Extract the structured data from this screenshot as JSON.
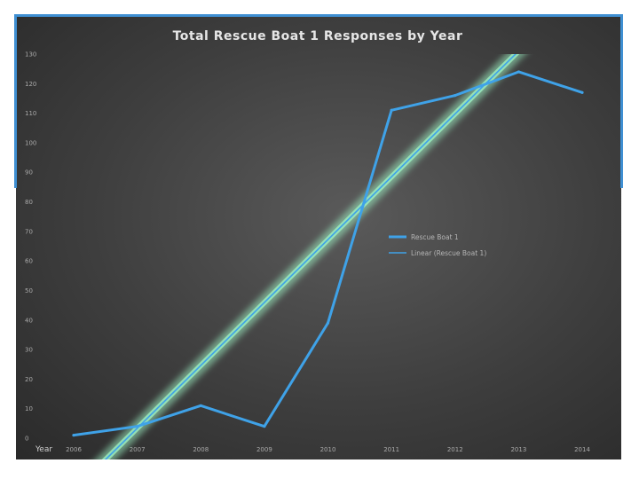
{
  "chart_data": {
    "type": "line",
    "title": "Total Rescue Boat 1 Responses by Year",
    "xlabel": "Year",
    "ylabel": "",
    "categories": [
      "2006",
      "2007",
      "2008",
      "2009",
      "2010",
      "2011",
      "2012",
      "2013",
      "2014"
    ],
    "y_ticks": [
      "0",
      "10",
      "20",
      "30",
      "40",
      "50",
      "60",
      "70",
      "80",
      "90",
      "100",
      "110",
      "120",
      "130"
    ],
    "ylim": [
      0,
      130
    ],
    "grid": false,
    "legend_position": "right",
    "series": [
      {
        "name": "Rescue Boat 1",
        "values": [
          1,
          4,
          11,
          4,
          39,
          111,
          116,
          124,
          117
        ],
        "color": "#3fa2e8"
      }
    ],
    "trendline": {
      "name": "Linear (Rescue Boat 1)",
      "type": "linear",
      "start": [
        2006,
        -17.9
      ],
      "end": [
        2014,
        152.3
      ],
      "color": "#9df0c2"
    },
    "colors": {
      "background": "#3e3e3e",
      "frame_accent": "#3f8fd2"
    }
  }
}
